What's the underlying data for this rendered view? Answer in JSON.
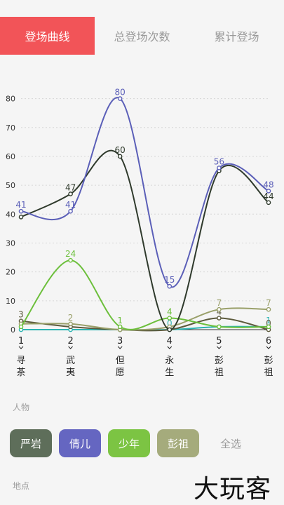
{
  "tabs": [
    {
      "label": "登场曲线",
      "active": true
    },
    {
      "label": "总登场次数",
      "active": false
    },
    {
      "label": "累计登场",
      "active": false
    }
  ],
  "chart_data": {
    "type": "line",
    "x": [
      1,
      2,
      3,
      4,
      5,
      6
    ],
    "x_labels": [
      "寻茶",
      "武夷",
      "但愿",
      "永生",
      "彭祖",
      "彭祖"
    ],
    "y_ticks": [
      0,
      10,
      20,
      30,
      40,
      50,
      60,
      70,
      80
    ],
    "ylim": [
      0,
      85
    ],
    "grid": true,
    "series": [
      {
        "color": "#5b5fb8",
        "values": [
          41,
          41,
          80,
          15,
          56,
          48
        ],
        "labels": [
          "41",
          "41",
          "80",
          "15",
          "56",
          "48"
        ]
      },
      {
        "color": "#2f3a2c",
        "values": [
          39,
          47,
          60,
          0,
          55,
          44
        ],
        "labels": [
          "",
          "47",
          "60",
          "",
          "",
          "44"
        ]
      },
      {
        "color": "#6cbf3b",
        "values": [
          1,
          24,
          1,
          4,
          1,
          1
        ],
        "labels": [
          "",
          "24",
          "1",
          "4",
          "",
          ""
        ]
      },
      {
        "color": "#9aa06a",
        "values": [
          2,
          2,
          0,
          1,
          7,
          7
        ],
        "labels": [
          "",
          "2",
          "",
          "",
          "7",
          "7"
        ]
      },
      {
        "color": "#5c5a3c",
        "values": [
          3,
          1,
          0,
          0,
          4,
          0
        ],
        "labels": [
          "3",
          "",
          "",
          "",
          "4",
          "0"
        ]
      },
      {
        "color": "#2bb3b1",
        "values": [
          0,
          0,
          0,
          0,
          1,
          1
        ],
        "labels": [
          "",
          "",
          "",
          "0",
          "",
          "1"
        ]
      }
    ]
  },
  "people": {
    "label": "人物",
    "chips": [
      {
        "label": "严岩",
        "color": "#5e6e5a"
      },
      {
        "label": "倩儿",
        "color": "#6566c1"
      },
      {
        "label": "少年",
        "color": "#7cc443"
      },
      {
        "label": "彭祖",
        "color": "#a5ab7c"
      },
      {
        "label": "全选",
        "color": ""
      }
    ]
  },
  "places": {
    "label": "地点"
  },
  "watermark": "大玩客"
}
